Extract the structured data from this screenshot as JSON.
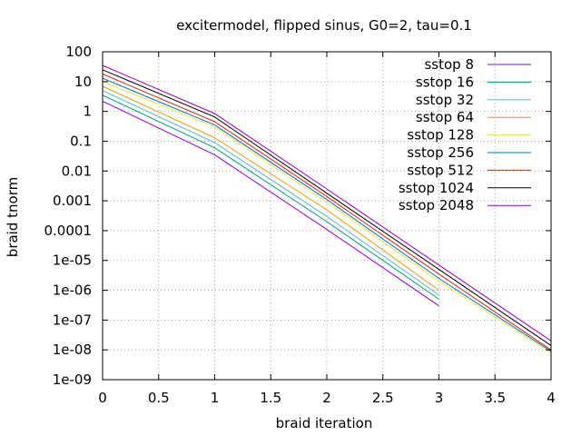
{
  "chart_data": {
    "type": "line",
    "title": "excitermodel, flipped sinus, G0=2, tau=0.1",
    "xlabel": "braid iteration",
    "ylabel": "braid tnorm",
    "xlim": [
      0,
      4
    ],
    "ylim": [
      1e-09,
      100
    ],
    "yscale": "log",
    "grid": true,
    "legend_position": "top-right",
    "x_ticks": [
      "0",
      "0.5",
      "1",
      "1.5",
      "2",
      "2.5",
      "3",
      "3.5",
      "4"
    ],
    "y_ticks": [
      "1e-09",
      "1e-08",
      "1e-07",
      "1e-06",
      "1e-05",
      "0.0001",
      "0.001",
      "0.01",
      "0.1",
      "1",
      "10",
      "100"
    ],
    "series": [
      {
        "name": "sstop 8",
        "color": "#9400d3",
        "x": [
          0,
          1,
          2,
          3
        ],
        "y": [
          2.2,
          0.035,
          0.00011,
          3e-07
        ]
      },
      {
        "name": "sstop 16",
        "color": "#009e73",
        "x": [
          0,
          1,
          2,
          3
        ],
        "y": [
          3.5,
          0.06,
          0.0002,
          5e-07
        ]
      },
      {
        "name": "sstop 32",
        "color": "#56b4e9",
        "x": [
          0,
          1,
          2,
          3
        ],
        "y": [
          5,
          0.09,
          0.0003,
          7e-07
        ]
      },
      {
        "name": "sstop 64",
        "color": "#e69f00",
        "x": [
          0,
          1,
          2,
          3
        ],
        "y": [
          7,
          0.13,
          0.0005,
          1e-06
        ]
      },
      {
        "name": "sstop 128",
        "color": "#f0e442",
        "x": [
          0,
          1,
          2,
          3,
          4
        ],
        "y": [
          10,
          0.3,
          0.0009,
          2e-06,
          8e-09
        ]
      },
      {
        "name": "sstop 256",
        "color": "#0072b2",
        "x": [
          0,
          1,
          2,
          3,
          4
        ],
        "y": [
          13,
          0.35,
          0.0011,
          2.5e-06,
          9e-09
        ]
      },
      {
        "name": "sstop 512",
        "color": "#e51e10",
        "x": [
          0,
          1,
          2,
          3,
          4
        ],
        "y": [
          18,
          0.45,
          0.0014,
          3.5e-06,
          1e-08
        ]
      },
      {
        "name": "sstop 1024",
        "color": "#000000",
        "x": [
          0,
          1,
          2,
          3,
          4
        ],
        "y": [
          25,
          0.65,
          0.0018,
          5e-06,
          1.4e-08
        ]
      },
      {
        "name": "sstop 2048",
        "color": "#9400d3",
        "x": [
          0,
          1,
          2,
          3,
          4
        ],
        "y": [
          35,
          0.85,
          0.0025,
          7e-06,
          2e-08
        ]
      }
    ]
  }
}
